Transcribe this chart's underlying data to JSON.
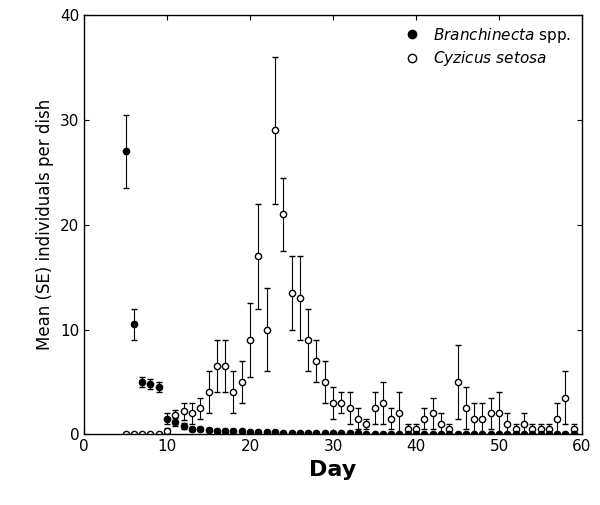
{
  "branchinecta_days": [
    5,
    6,
    7,
    8,
    9,
    10,
    11,
    12,
    13,
    14,
    15,
    16,
    17,
    18,
    19,
    20,
    21,
    22,
    23,
    24,
    25,
    26,
    27,
    28,
    29,
    30,
    31,
    32,
    33,
    34,
    35,
    36,
    37,
    38,
    39,
    40,
    41,
    42,
    43,
    44,
    45,
    46,
    47,
    48,
    49,
    50,
    51,
    52,
    53,
    54,
    55,
    56,
    57,
    58,
    59
  ],
  "branchinecta_mean": [
    27.0,
    10.5,
    5.0,
    4.8,
    4.5,
    1.5,
    1.2,
    0.8,
    0.5,
    0.5,
    0.4,
    0.3,
    0.3,
    0.3,
    0.3,
    0.2,
    0.2,
    0.2,
    0.2,
    0.1,
    0.1,
    0.1,
    0.1,
    0.1,
    0.1,
    0.1,
    0.1,
    0.1,
    0.1,
    0.0,
    0.0,
    0.0,
    0.0,
    0.0,
    0.0,
    0.0,
    0.0,
    0.0,
    0.0,
    0.0,
    0.0,
    0.0,
    0.0,
    0.0,
    0.0,
    0.0,
    0.0,
    0.0,
    0.0,
    0.0,
    0.0,
    0.0,
    0.0,
    0.0,
    0.0
  ],
  "branchinecta_se": [
    3.5,
    1.5,
    0.5,
    0.5,
    0.5,
    0.5,
    0.4,
    0.3,
    0.2,
    0.2,
    0.2,
    0.2,
    0.2,
    0.2,
    0.1,
    0.1,
    0.1,
    0.1,
    0.1,
    0.1,
    0.1,
    0.1,
    0.1,
    0.1,
    0.1,
    0.1,
    0.1,
    0.1,
    0.1,
    0.0,
    0.0,
    0.0,
    0.0,
    0.0,
    0.0,
    0.0,
    0.0,
    0.0,
    0.0,
    0.0,
    0.0,
    0.0,
    0.0,
    0.0,
    0.0,
    0.0,
    0.0,
    0.0,
    0.0,
    0.0,
    0.0,
    0.0,
    0.0,
    0.0,
    0.0
  ],
  "cyzicus_days": [
    5,
    6,
    7,
    8,
    9,
    10,
    11,
    12,
    13,
    14,
    15,
    16,
    17,
    18,
    19,
    20,
    21,
    22,
    23,
    24,
    25,
    26,
    27,
    28,
    29,
    30,
    31,
    32,
    33,
    34,
    35,
    36,
    37,
    38,
    39,
    40,
    41,
    42,
    43,
    44,
    45,
    46,
    47,
    48,
    49,
    50,
    51,
    52,
    53,
    54,
    55,
    56,
    57,
    58,
    59
  ],
  "cyzicus_mean": [
    0.0,
    0.0,
    0.0,
    0.0,
    0.0,
    0.3,
    1.8,
    2.2,
    2.0,
    2.5,
    4.0,
    6.5,
    6.5,
    4.0,
    5.0,
    9.0,
    17.0,
    10.0,
    29.0,
    21.0,
    13.5,
    13.0,
    9.0,
    7.0,
    5.0,
    3.0,
    3.0,
    2.5,
    1.5,
    1.0,
    2.5,
    3.0,
    1.5,
    2.0,
    0.5,
    0.5,
    1.5,
    2.0,
    1.0,
    0.5,
    5.0,
    2.5,
    1.5,
    1.5,
    2.0,
    2.0,
    1.0,
    0.5,
    1.0,
    0.5,
    0.5,
    0.5,
    1.5,
    3.5,
    0.5
  ],
  "cyzicus_se": [
    0.0,
    0.0,
    0.0,
    0.0,
    0.0,
    0.3,
    0.5,
    0.8,
    1.0,
    1.0,
    2.0,
    2.5,
    2.5,
    2.0,
    2.0,
    3.5,
    5.0,
    4.0,
    7.0,
    3.5,
    3.5,
    4.0,
    3.0,
    2.0,
    2.0,
    1.5,
    1.0,
    1.5,
    1.0,
    0.5,
    1.5,
    2.0,
    1.0,
    2.0,
    0.5,
    0.5,
    1.0,
    1.5,
    1.0,
    0.5,
    3.5,
    2.0,
    1.5,
    1.5,
    1.5,
    2.0,
    1.0,
    0.5,
    1.0,
    0.5,
    0.5,
    0.5,
    1.5,
    2.5,
    0.5
  ],
  "xlim": [
    2,
    60
  ],
  "ylim": [
    0,
    40
  ],
  "xticks": [
    0,
    10,
    20,
    30,
    40,
    50,
    60
  ],
  "yticks": [
    0,
    10,
    20,
    30,
    40
  ],
  "xlabel": "Day",
  "ylabel": "Mean (SE) individuals per dish",
  "xlabel_fontsize": 16,
  "ylabel_fontsize": 12,
  "tick_fontsize": 11,
  "legend_fontsize": 11,
  "figure_facecolor": "#ffffff",
  "axes_facecolor": "#ffffff"
}
